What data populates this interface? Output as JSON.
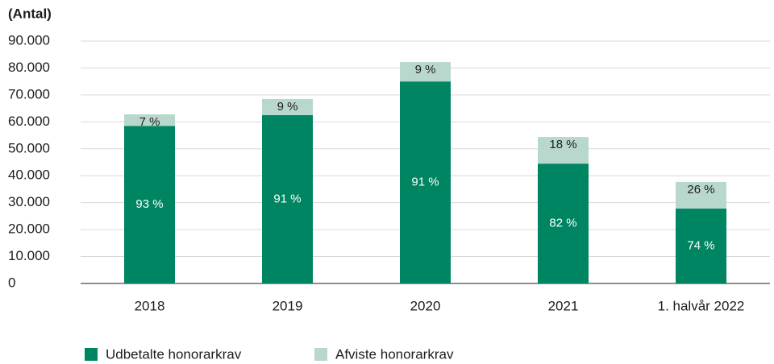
{
  "chart_data": {
    "type": "bar",
    "stacked": true,
    "y_label": "(Antal)",
    "categories": [
      "2018",
      "2019",
      "2020",
      "2021",
      "1. halvår 2022"
    ],
    "series": [
      {
        "name": "Udbetalte honorarkrav",
        "color": "#008563",
        "values": [
          58500,
          62500,
          75000,
          44500,
          27800
        ],
        "percent_labels": [
          "93 %",
          "91 %",
          "91 %",
          "82 %",
          "74 %"
        ]
      },
      {
        "name": "Afviste honorarkrav",
        "color": "#b9d8cd",
        "values": [
          4300,
          6000,
          7200,
          9900,
          9900
        ],
        "percent_labels": [
          "7 %",
          "9 %",
          "9 %",
          "18 %",
          "26 %"
        ]
      }
    ],
    "ylim": [
      0,
      90000
    ],
    "yticks": [
      0,
      {
        "value": 10000,
        "label": "10.000"
      },
      {
        "value": 20000,
        "label": "20.000"
      },
      {
        "value": 30000,
        "label": "30.000"
      },
      {
        "value": 40000,
        "label": "40.000"
      },
      {
        "value": 50000,
        "label": "50.000"
      },
      {
        "value": 60000,
        "label": "60.000"
      },
      {
        "value": 70000,
        "label": "70.000"
      },
      {
        "value": 80000,
        "label": "80.000"
      },
      {
        "value": 90000,
        "label": "90.000"
      }
    ],
    "grid": true,
    "legend": "bottom-left"
  }
}
